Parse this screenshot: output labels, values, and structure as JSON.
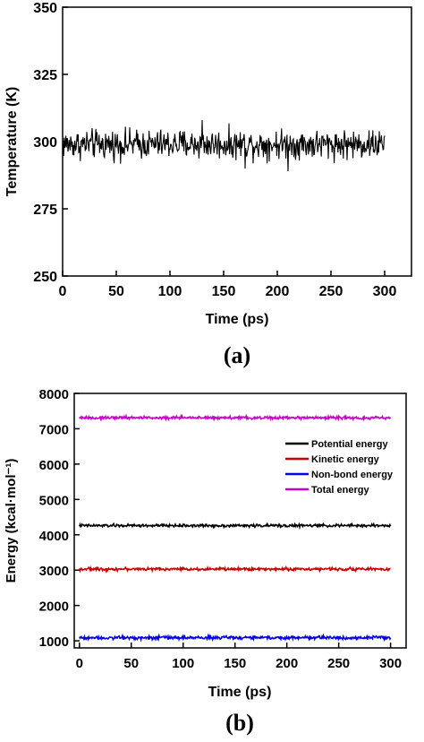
{
  "chart_data": [
    {
      "type": "line",
      "panel_label": "(a)",
      "xlabel": "Time (ps)",
      "ylabel": "Temperature (K)",
      "xlim": [
        0,
        325
      ],
      "ylim": [
        250,
        350
      ],
      "xticks": [
        "0",
        "50",
        "100",
        "150",
        "200",
        "250",
        "300"
      ],
      "yticks": [
        "250",
        "275",
        "300",
        "325",
        "350"
      ],
      "grid": false,
      "series": [
        {
          "color": "#000000",
          "x_range": [
            0,
            300
          ],
          "mean": 299,
          "fluctuation": 4,
          "extremes": [
            [
              130,
              308
            ],
            [
              170,
              290
            ],
            [
              210,
              289
            ]
          ]
        }
      ]
    },
    {
      "type": "line",
      "panel_label": "(b)",
      "xlabel": "Time (ps)",
      "ylabel": "Energy (kcal·mol⁻¹)",
      "xlim": [
        -5,
        315
      ],
      "ylim": [
        800,
        8000
      ],
      "xticks": [
        "0",
        "50",
        "100",
        "150",
        "200",
        "250",
        "300"
      ],
      "yticks": [
        "1000",
        "2000",
        "3000",
        "4000",
        "5000",
        "6000",
        "7000",
        "8000"
      ],
      "grid": false,
      "legend_position": "right",
      "series": [
        {
          "name": "Potential energy",
          "color": "#000000",
          "x_range": [
            0,
            300
          ],
          "mean": 4260,
          "fluctuation": 30
        },
        {
          "name": "Kinetic energy",
          "color": "#cc0000",
          "x_range": [
            0,
            300
          ],
          "mean": 3030,
          "fluctuation": 30
        },
        {
          "name": "Non-bond energy",
          "color": "#0000ee",
          "x_range": [
            0,
            300
          ],
          "mean": 1090,
          "fluctuation": 35
        },
        {
          "name": "Total energy",
          "color": "#cc00cc",
          "x_range": [
            0,
            300
          ],
          "mean": 7310,
          "fluctuation": 30
        }
      ]
    }
  ]
}
